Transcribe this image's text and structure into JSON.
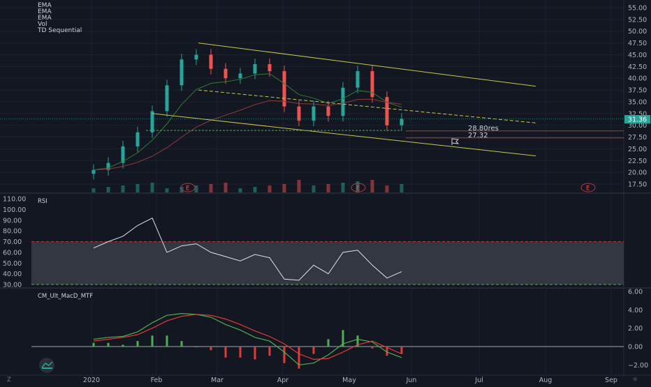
{
  "legend": [
    "EMA",
    "EMA",
    "EMA",
    "Vol",
    "TD Sequential"
  ],
  "price_axis": [
    "55.00",
    "52.50",
    "50.00",
    "47.50",
    "45.00",
    "42.50",
    "40.00",
    "37.50",
    "35.00",
    "32.50",
    "30.00",
    "27.50",
    "25.00",
    "22.50",
    "20.00",
    "17.50"
  ],
  "last_price": "31.36",
  "rsi_label": "RSI",
  "rsi_axis": [
    "110.00",
    "100.00",
    "90.00",
    "80.00",
    "70.00",
    "60.00",
    "50.00",
    "40.00",
    "30.00"
  ],
  "macd_label": "CM_Ult_MacD_MTF",
  "macd_axis": [
    "6.00",
    "4.00",
    "2.00",
    "0.00",
    "−2.00"
  ],
  "time_axis": [
    "2020",
    "Feb",
    "Mar",
    "Apr",
    "May",
    "Jun",
    "Jul",
    "Aug",
    "Sep"
  ],
  "corner_left": "Z",
  "corner_right": "☼",
  "earnings_marker": "E",
  "level_labels": [
    "28.80res",
    "27.32"
  ],
  "colors": {
    "background": "#131722",
    "up": "#26a69a",
    "down": "#ef5350",
    "trendline": "#c9c94a",
    "support": "#4caf50",
    "resistance": "#b33a3a",
    "rsi_line": "#e0e3eb",
    "macd": "#4caf50",
    "signal": "#e53935"
  },
  "chart_data": [
    {
      "type": "candlestick",
      "title": "",
      "ylim": [
        15,
        56
      ],
      "x": [
        "2020-01-02",
        "2020-01-09",
        "2020-01-16",
        "2020-01-23",
        "2020-01-30",
        "2020-02-06",
        "2020-02-13",
        "2020-02-20",
        "2020-02-27",
        "2020-03-05",
        "2020-03-12",
        "2020-03-19",
        "2020-03-26",
        "2020-04-02",
        "2020-04-09",
        "2020-04-16",
        "2020-04-23",
        "2020-04-30",
        "2020-05-07",
        "2020-05-14",
        "2020-05-21",
        "2020-05-28"
      ],
      "close": [
        20.5,
        22.0,
        25.5,
        28.5,
        33.0,
        38.5,
        44.0,
        45.0,
        42.0,
        40.0,
        41.0,
        43.0,
        41.5,
        34.0,
        31.0,
        34.0,
        32.0,
        38.0,
        41.5,
        36.0,
        30.0,
        31.36
      ],
      "annotations": [
        "28.80res",
        "27.32"
      ]
    },
    {
      "type": "line",
      "name": "RSI",
      "ylim": [
        25,
        112
      ],
      "bands": [
        30,
        70
      ],
      "x": [
        "2020-01-02",
        "2020-01-09",
        "2020-01-16",
        "2020-01-23",
        "2020-01-30",
        "2020-02-06",
        "2020-02-13",
        "2020-02-20",
        "2020-02-27",
        "2020-03-05",
        "2020-03-12",
        "2020-03-19",
        "2020-03-26",
        "2020-04-02",
        "2020-04-09",
        "2020-04-16",
        "2020-04-23",
        "2020-04-30",
        "2020-05-07",
        "2020-05-14",
        "2020-05-21",
        "2020-05-28"
      ],
      "values": [
        64,
        70,
        75,
        85,
        92,
        60,
        66,
        68,
        60,
        56,
        52,
        58,
        55,
        35,
        34,
        48,
        40,
        60,
        62,
        48,
        36,
        42
      ]
    },
    {
      "type": "line",
      "name": "CM_Ult_MacD_MTF",
      "ylim": [
        -3,
        6.5
      ],
      "x": [
        "2020-01-02",
        "2020-01-09",
        "2020-01-16",
        "2020-01-23",
        "2020-01-30",
        "2020-02-06",
        "2020-02-13",
        "2020-02-20",
        "2020-02-27",
        "2020-03-05",
        "2020-03-12",
        "2020-03-19",
        "2020-03-26",
        "2020-04-02",
        "2020-04-09",
        "2020-04-16",
        "2020-04-23",
        "2020-04-30",
        "2020-05-07",
        "2020-05-14",
        "2020-05-21",
        "2020-05-28"
      ],
      "macd": [
        0.8,
        1.0,
        1.1,
        1.6,
        2.6,
        3.4,
        3.6,
        3.5,
        3.2,
        2.4,
        1.8,
        1.0,
        0.6,
        -0.6,
        -2.0,
        -1.8,
        -0.9,
        0.3,
        0.8,
        0.5,
        -0.6,
        -1.2
      ],
      "signal": [
        0.6,
        0.8,
        1.0,
        1.3,
        2.0,
        2.8,
        3.3,
        3.5,
        3.4,
        3.0,
        2.4,
        1.7,
        1.1,
        0.3,
        -0.8,
        -1.4,
        -1.3,
        -0.6,
        0.2,
        0.6,
        -0.1,
        -0.8
      ]
    }
  ]
}
